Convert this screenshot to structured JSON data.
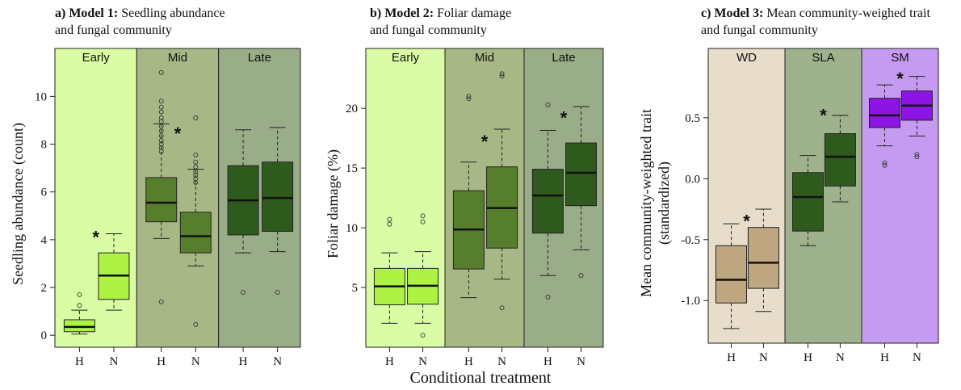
{
  "x_axis_title": "Conditional treatment",
  "colors": {
    "early_bg": "#d9fca4",
    "mid_bg": "#a8b786",
    "late_bg": "#99ae88",
    "wd_bg": "#e8dccb",
    "sla_bg": "#9db28d",
    "sm_bg": "#c59af1",
    "early_box": "#aef244",
    "mid_box": "#577e2c",
    "late_box": "#2f5a1d",
    "wd_box": "#bea680",
    "sla_box": "#2f5a1d",
    "sm_box": "#8c14e4"
  },
  "chart_data": [
    {
      "type": "box",
      "panel": "a",
      "title_bold": "a) Model 1:",
      "title_rest": "Seedling abundance",
      "title_line2": "and fungal community",
      "ylabel": "Seedling abundance (count)",
      "ylim": [
        -0.5,
        11.5
      ],
      "yticks": [
        0,
        2,
        4,
        6,
        8,
        10
      ],
      "yticklabels": [
        "0",
        "2",
        "4",
        "6",
        "8",
        "10"
      ],
      "groups": [
        "Early",
        "Mid",
        "Late"
      ],
      "categories": [
        "H",
        "N",
        "H",
        "N",
        "H",
        "N"
      ],
      "boxes": [
        {
          "group": "Early",
          "treatment": "H",
          "whisker_low": 0.05,
          "q1": 0.15,
          "median": 0.35,
          "q3": 0.65,
          "whisker_high": 1.05,
          "outliers": [
            1.25,
            1.7
          ]
        },
        {
          "group": "Early",
          "treatment": "N",
          "whisker_low": 1.05,
          "q1": 1.5,
          "median": 2.5,
          "q3": 3.45,
          "whisker_high": 4.25,
          "outliers": []
        },
        {
          "group": "Mid",
          "treatment": "H",
          "whisker_low": 4.05,
          "q1": 4.75,
          "median": 5.55,
          "q3": 6.6,
          "whisker_high": 8.85,
          "outliers": [
            1.4,
            7.7,
            7.85,
            8.0,
            8.15,
            8.35,
            8.55,
            8.75,
            8.95,
            9.1,
            9.35,
            9.55,
            9.8,
            11.0
          ]
        },
        {
          "group": "Mid",
          "treatment": "N",
          "whisker_low": 2.9,
          "q1": 3.45,
          "median": 4.15,
          "q3": 5.15,
          "whisker_high": 6.95,
          "outliers": [
            0.45,
            6.4,
            6.55,
            6.7,
            6.85,
            7.05,
            7.25,
            7.55,
            9.1
          ]
        },
        {
          "group": "Late",
          "treatment": "H",
          "whisker_low": 3.45,
          "q1": 4.2,
          "median": 5.65,
          "q3": 7.1,
          "whisker_high": 8.6,
          "outliers": [
            1.8
          ]
        },
        {
          "group": "Late",
          "treatment": "N",
          "whisker_low": 3.5,
          "q1": 4.35,
          "median": 5.75,
          "q3": 7.25,
          "whisker_high": 8.7,
          "outliers": [
            1.8
          ]
        }
      ],
      "significance": [
        {
          "group": "Early",
          "y": 4.25,
          "label": "*"
        },
        {
          "group": "Mid",
          "y": 8.6,
          "label": "*"
        }
      ]
    },
    {
      "type": "box",
      "panel": "b",
      "title_bold": "b) Model 2:",
      "title_rest": "Foliar damage",
      "title_line2": "and fungal community",
      "ylabel": "Foliar damage (%)",
      "ylim": [
        0,
        24
      ],
      "yticks": [
        5,
        10,
        15,
        20
      ],
      "yticklabels": [
        "5",
        "10",
        "15",
        "20"
      ],
      "groups": [
        "Early",
        "Mid",
        "Late"
      ],
      "categories": [
        "H",
        "N",
        "H",
        "N",
        "H",
        "N"
      ],
      "boxes": [
        {
          "group": "Early",
          "treatment": "H",
          "whisker_low": 2.0,
          "q1": 3.55,
          "median": 5.1,
          "q3": 6.6,
          "whisker_high": 7.9,
          "outliers": [
            10.3,
            10.7
          ]
        },
        {
          "group": "Early",
          "treatment": "N",
          "whisker_low": 2.0,
          "q1": 3.6,
          "median": 5.15,
          "q3": 6.6,
          "whisker_high": 8.0,
          "outliers": [
            1.0,
            10.5,
            11.0
          ]
        },
        {
          "group": "Mid",
          "treatment": "H",
          "whisker_low": 4.15,
          "q1": 6.55,
          "median": 9.85,
          "q3": 13.1,
          "whisker_high": 15.5,
          "outliers": [
            20.8,
            21.0
          ]
        },
        {
          "group": "Mid",
          "treatment": "N",
          "whisker_low": 5.7,
          "q1": 8.3,
          "median": 11.65,
          "q3": 15.1,
          "whisker_high": 18.25,
          "outliers": [
            3.3,
            22.7,
            22.9
          ]
        },
        {
          "group": "Late",
          "treatment": "H",
          "whisker_low": 6.0,
          "q1": 9.55,
          "median": 12.7,
          "q3": 14.9,
          "whisker_high": 18.15,
          "outliers": [
            4.2,
            20.3
          ]
        },
        {
          "group": "Late",
          "treatment": "N",
          "whisker_low": 8.15,
          "q1": 11.85,
          "median": 14.6,
          "q3": 17.1,
          "whisker_high": 20.15,
          "outliers": [
            6.0
          ]
        }
      ],
      "significance": [
        {
          "group": "Mid",
          "y": 17.5,
          "label": "*"
        },
        {
          "group": "Late",
          "y": 19.5,
          "label": "*"
        }
      ]
    },
    {
      "type": "box",
      "panel": "c",
      "title_bold": "c) Model 3:",
      "title_rest": "Mean community-weighed trait",
      "title_line2": "and fungal community",
      "ylabel": "Mean community-weighted trait",
      "ylabel2": "(standardized)",
      "ylim": [
        -1.35,
        0.95
      ],
      "yticks": [
        -1.0,
        -0.5,
        0.0,
        0.5
      ],
      "yticklabels": [
        "-1.0",
        "-0.5",
        "0.0",
        "0.5"
      ],
      "groups": [
        "WD",
        "SLA",
        "SM"
      ],
      "categories": [
        "H",
        "N",
        "H",
        "N",
        "H",
        "N"
      ],
      "boxes": [
        {
          "group": "WD",
          "treatment": "H",
          "whisker_low": -1.23,
          "q1": -1.02,
          "median": -0.83,
          "q3": -0.55,
          "whisker_high": -0.37,
          "outliers": []
        },
        {
          "group": "WD",
          "treatment": "N",
          "whisker_low": -1.09,
          "q1": -0.9,
          "median": -0.69,
          "q3": -0.4,
          "whisker_high": -0.25,
          "outliers": []
        },
        {
          "group": "SLA",
          "treatment": "H",
          "whisker_low": -0.55,
          "q1": -0.43,
          "median": -0.15,
          "q3": 0.05,
          "whisker_high": 0.19,
          "outliers": []
        },
        {
          "group": "SLA",
          "treatment": "N",
          "whisker_low": -0.19,
          "q1": -0.06,
          "median": 0.18,
          "q3": 0.37,
          "whisker_high": 0.52,
          "outliers": []
        },
        {
          "group": "SM",
          "treatment": "H",
          "whisker_low": 0.27,
          "q1": 0.42,
          "median": 0.52,
          "q3": 0.66,
          "whisker_high": 0.77,
          "outliers": [
            0.11,
            0.13
          ]
        },
        {
          "group": "SM",
          "treatment": "N",
          "whisker_low": 0.35,
          "q1": 0.48,
          "median": 0.6,
          "q3": 0.72,
          "whisker_high": 0.84,
          "outliers": [
            0.18,
            0.2
          ]
        }
      ],
      "significance": [
        {
          "group": "WD",
          "y": -0.32,
          "label": "*"
        },
        {
          "group": "SLA",
          "y": 0.55,
          "label": "*"
        },
        {
          "group": "SM",
          "y": 0.85,
          "label": "*"
        }
      ]
    }
  ]
}
